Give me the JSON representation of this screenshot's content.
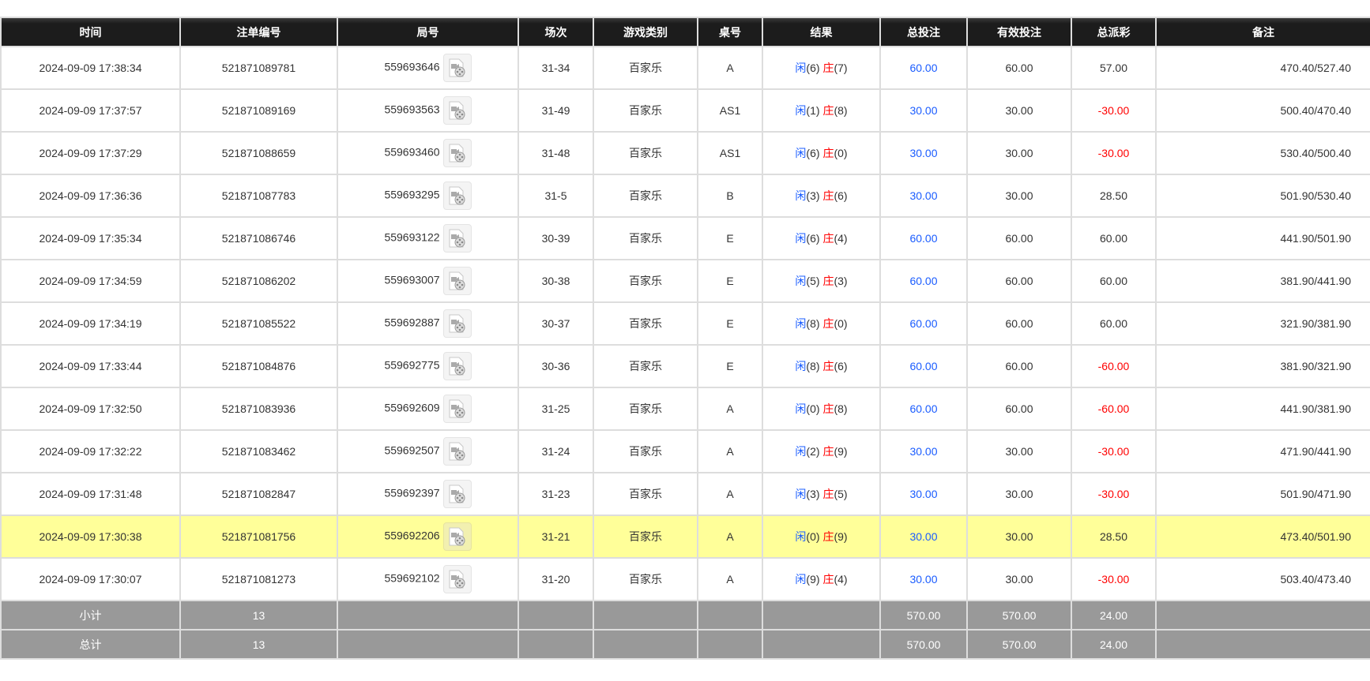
{
  "headers": [
    "时间",
    "注单编号",
    "局号",
    "场次",
    "游戏类别",
    "桌号",
    "结果",
    "总投注",
    "有效投注",
    "总派彩",
    "备注"
  ],
  "result_labels": {
    "player": "闲",
    "banker": "庄"
  },
  "colors": {
    "header_bg": "#1c1c1c",
    "highlight_row": "#ffff99",
    "summary_bg": "#999999",
    "positive_blue": "#1a5cff",
    "negative_red": "#ff0000"
  },
  "rows": [
    {
      "time": "2024-09-09 17:38:34",
      "bet_id": "521871089781",
      "round": "559693646",
      "shoe": "31-34",
      "game": "百家乐",
      "table": "A",
      "player": "(6)",
      "banker": "(7)",
      "total_bet": "60.00",
      "valid_bet": "60.00",
      "payout": "57.00",
      "payout_negative": false,
      "remark": "470.40/527.40",
      "highlight": false
    },
    {
      "time": "2024-09-09 17:37:57",
      "bet_id": "521871089169",
      "round": "559693563",
      "shoe": "31-49",
      "game": "百家乐",
      "table": "AS1",
      "player": "(1)",
      "banker": "(8)",
      "total_bet": "30.00",
      "valid_bet": "30.00",
      "payout": "-30.00",
      "payout_negative": true,
      "remark": "500.40/470.40",
      "highlight": false
    },
    {
      "time": "2024-09-09 17:37:29",
      "bet_id": "521871088659",
      "round": "559693460",
      "shoe": "31-48",
      "game": "百家乐",
      "table": "AS1",
      "player": "(6)",
      "banker": "(0)",
      "total_bet": "30.00",
      "valid_bet": "30.00",
      "payout": "-30.00",
      "payout_negative": true,
      "remark": "530.40/500.40",
      "highlight": false
    },
    {
      "time": "2024-09-09 17:36:36",
      "bet_id": "521871087783",
      "round": "559693295",
      "shoe": "31-5",
      "game": "百家乐",
      "table": "B",
      "player": "(3)",
      "banker": "(6)",
      "total_bet": "30.00",
      "valid_bet": "30.00",
      "payout": "28.50",
      "payout_negative": false,
      "remark": "501.90/530.40",
      "highlight": false
    },
    {
      "time": "2024-09-09 17:35:34",
      "bet_id": "521871086746",
      "round": "559693122",
      "shoe": "30-39",
      "game": "百家乐",
      "table": "E",
      "player": "(6)",
      "banker": "(4)",
      "total_bet": "60.00",
      "valid_bet": "60.00",
      "payout": "60.00",
      "payout_negative": false,
      "remark": "441.90/501.90",
      "highlight": false
    },
    {
      "time": "2024-09-09 17:34:59",
      "bet_id": "521871086202",
      "round": "559693007",
      "shoe": "30-38",
      "game": "百家乐",
      "table": "E",
      "player": "(5)",
      "banker": "(3)",
      "total_bet": "60.00",
      "valid_bet": "60.00",
      "payout": "60.00",
      "payout_negative": false,
      "remark": "381.90/441.90",
      "highlight": false
    },
    {
      "time": "2024-09-09 17:34:19",
      "bet_id": "521871085522",
      "round": "559692887",
      "shoe": "30-37",
      "game": "百家乐",
      "table": "E",
      "player": "(8)",
      "banker": "(0)",
      "total_bet": "60.00",
      "valid_bet": "60.00",
      "payout": "60.00",
      "payout_negative": false,
      "remark": "321.90/381.90",
      "highlight": false
    },
    {
      "time": "2024-09-09 17:33:44",
      "bet_id": "521871084876",
      "round": "559692775",
      "shoe": "30-36",
      "game": "百家乐",
      "table": "E",
      "player": "(8)",
      "banker": "(6)",
      "total_bet": "60.00",
      "valid_bet": "60.00",
      "payout": "-60.00",
      "payout_negative": true,
      "remark": "381.90/321.90",
      "highlight": false
    },
    {
      "time": "2024-09-09 17:32:50",
      "bet_id": "521871083936",
      "round": "559692609",
      "shoe": "31-25",
      "game": "百家乐",
      "table": "A",
      "player": "(0)",
      "banker": "(8)",
      "total_bet": "60.00",
      "valid_bet": "60.00",
      "payout": "-60.00",
      "payout_negative": true,
      "remark": "441.90/381.90",
      "highlight": false
    },
    {
      "time": "2024-09-09 17:32:22",
      "bet_id": "521871083462",
      "round": "559692507",
      "shoe": "31-24",
      "game": "百家乐",
      "table": "A",
      "player": "(2)",
      "banker": "(9)",
      "total_bet": "30.00",
      "valid_bet": "30.00",
      "payout": "-30.00",
      "payout_negative": true,
      "remark": "471.90/441.90",
      "highlight": false
    },
    {
      "time": "2024-09-09 17:31:48",
      "bet_id": "521871082847",
      "round": "559692397",
      "shoe": "31-23",
      "game": "百家乐",
      "table": "A",
      "player": "(3)",
      "banker": "(5)",
      "total_bet": "30.00",
      "valid_bet": "30.00",
      "payout": "-30.00",
      "payout_negative": true,
      "remark": "501.90/471.90",
      "highlight": false
    },
    {
      "time": "2024-09-09 17:30:38",
      "bet_id": "521871081756",
      "round": "559692206",
      "shoe": "31-21",
      "game": "百家乐",
      "table": "A",
      "player": "(0)",
      "banker": "(9)",
      "total_bet": "30.00",
      "valid_bet": "30.00",
      "payout": "28.50",
      "payout_negative": false,
      "remark": "473.40/501.90",
      "highlight": true
    },
    {
      "time": "2024-09-09 17:30:07",
      "bet_id": "521871081273",
      "round": "559692102",
      "shoe": "31-20",
      "game": "百家乐",
      "table": "A",
      "player": "(9)",
      "banker": "(4)",
      "total_bet": "30.00",
      "valid_bet": "30.00",
      "payout": "-30.00",
      "payout_negative": true,
      "remark": "503.40/473.40",
      "highlight": false
    }
  ],
  "summary": [
    {
      "label": "小计",
      "count": "13",
      "total_bet": "570.00",
      "valid_bet": "570.00",
      "payout": "24.00"
    },
    {
      "label": "总计",
      "count": "13",
      "total_bet": "570.00",
      "valid_bet": "570.00",
      "payout": "24.00"
    }
  ]
}
